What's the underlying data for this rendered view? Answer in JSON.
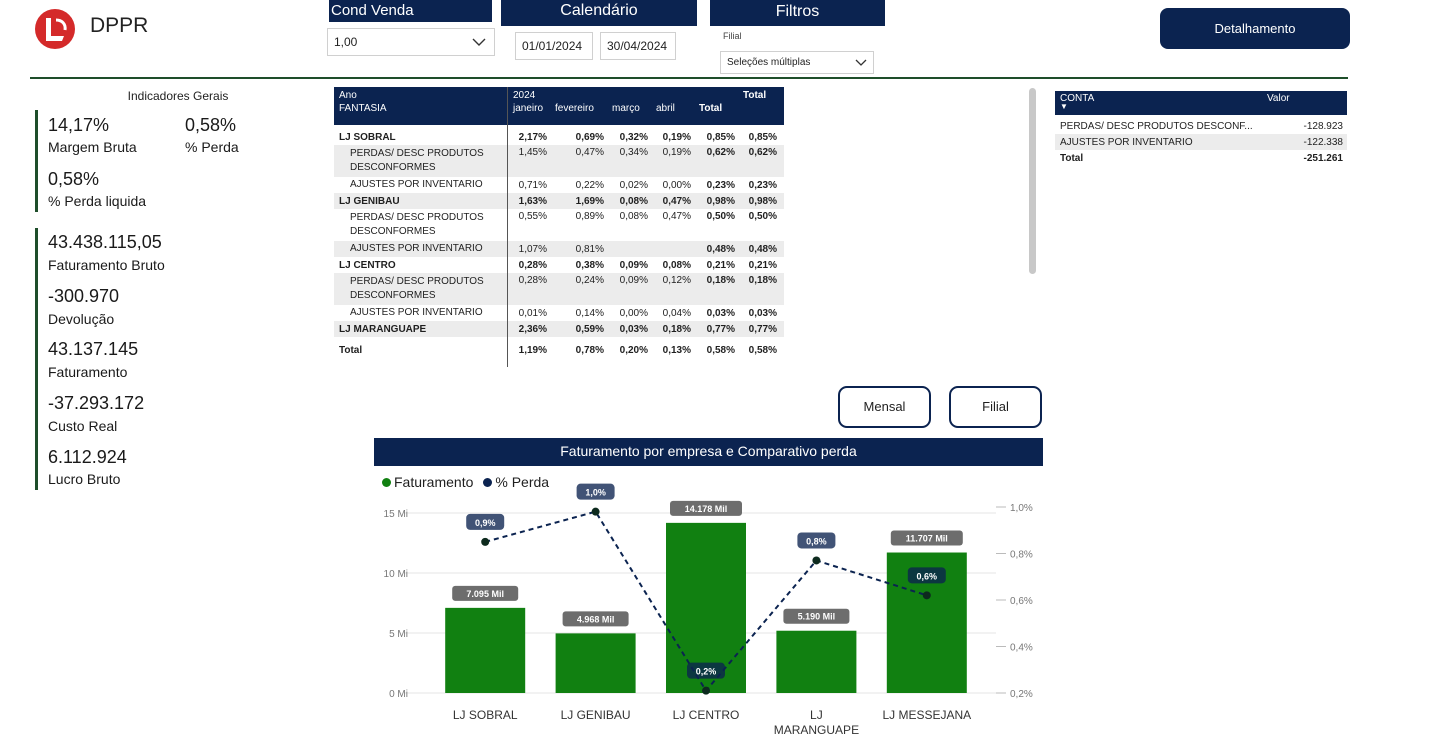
{
  "header": {
    "brand": "DPPR",
    "cond_venda": {
      "title": "Cond Venda",
      "value": "1,00"
    },
    "calendario": {
      "title": "Calendário",
      "start": "01/01/2024",
      "end": "30/04/2024"
    },
    "filtros": {
      "title": "Filtros",
      "filial_label": "Filial",
      "filial_value": "Seleções múltiplas"
    },
    "detalhamento_label": "Detalhamento"
  },
  "indicators": {
    "title": "Indicadores Gerais",
    "margem_bruta": {
      "value": "14,17%",
      "label": "Margem Bruta"
    },
    "perda": {
      "value": "0,58%",
      "label": "% Perda"
    },
    "perda_liquida": {
      "value": "0,58%",
      "label": "% Perda liquida"
    },
    "fat_bruto": {
      "value": "43.438.115,05",
      "label": "Faturamento Bruto"
    },
    "devolucao": {
      "value": "-300.970",
      "label": "Devolução"
    },
    "faturamento": {
      "value": "43.137.145",
      "label": "Faturamento"
    },
    "custo_real": {
      "value": "-37.293.172",
      "label": "Custo Real"
    },
    "lucro_bruto": {
      "value": "6.112.924",
      "label": "Lucro Bruto"
    }
  },
  "matrix": {
    "h_ano": "Ano",
    "h_year": "2024",
    "h_total": "Total",
    "h_fantasia": "FANTASIA",
    "months": [
      "janeiro",
      "fevereiro",
      "março",
      "abril"
    ],
    "rows": [
      {
        "label": "LJ SOBRAL",
        "vals": [
          "2,17%",
          "0,69%",
          "0,32%",
          "0,19%",
          "0,85%",
          "0,85%"
        ]
      },
      {
        "label": "PERDAS/ DESC PRODUTOS DESCONFORMES",
        "vals": [
          "1,45%",
          "0,47%",
          "0,34%",
          "0,19%",
          "0,62%",
          "0,62%"
        ]
      },
      {
        "label": "AJUSTES POR INVENTARIO",
        "vals": [
          "0,71%",
          "0,22%",
          "0,02%",
          "0,00%",
          "0,23%",
          "0,23%"
        ]
      },
      {
        "label": "LJ GENIBAU",
        "vals": [
          "1,63%",
          "1,69%",
          "0,08%",
          "0,47%",
          "0,98%",
          "0,98%"
        ]
      },
      {
        "label": "PERDAS/ DESC PRODUTOS DESCONFORMES",
        "vals": [
          "0,55%",
          "0,89%",
          "0,08%",
          "0,47%",
          "0,50%",
          "0,50%"
        ]
      },
      {
        "label": "AJUSTES POR INVENTARIO",
        "vals": [
          "1,07%",
          "0,81%",
          "",
          "",
          "0,48%",
          "0,48%"
        ]
      },
      {
        "label": "LJ CENTRO",
        "vals": [
          "0,28%",
          "0,38%",
          "0,09%",
          "0,08%",
          "0,21%",
          "0,21%"
        ]
      },
      {
        "label": "PERDAS/ DESC PRODUTOS DESCONFORMES",
        "vals": [
          "0,28%",
          "0,24%",
          "0,09%",
          "0,12%",
          "0,18%",
          "0,18%"
        ]
      },
      {
        "label": "AJUSTES POR INVENTARIO",
        "vals": [
          "0,01%",
          "0,14%",
          "0,00%",
          "0,04%",
          "0,03%",
          "0,03%"
        ]
      },
      {
        "label": "LJ MARANGUAPE",
        "vals": [
          "2,36%",
          "0,59%",
          "0,03%",
          "0,18%",
          "0,77%",
          "0,77%"
        ]
      },
      {
        "label": "Total",
        "vals": [
          "1,19%",
          "0,78%",
          "0,20%",
          "0,13%",
          "0,58%",
          "0,58%"
        ]
      }
    ]
  },
  "conta": {
    "h_conta": "CONTA",
    "h_valor": "Valor",
    "rows": [
      {
        "label": "PERDAS/ DESC PRODUTOS DESCONF...",
        "value": "-128.923"
      },
      {
        "label": "AJUSTES POR INVENTARIO",
        "value": "-122.338"
      },
      {
        "label": "Total",
        "value": "-251.261"
      }
    ]
  },
  "buttons": {
    "mensal": "Mensal",
    "filial": "Filial"
  },
  "chart_data": {
    "type": "bar",
    "title": "Faturamento por empresa e Comparativo perda",
    "categories": [
      "LJ SOBRAL",
      "LJ GENIBAU",
      "LJ CENTRO",
      "LJ MARANGUAPE",
      "LJ MESSEJANA"
    ],
    "category_lines": [
      [
        "LJ SOBRAL"
      ],
      [
        "LJ GENIBAU"
      ],
      [
        "LJ CENTRO"
      ],
      [
        "LJ",
        "MARANGUAPE"
      ],
      [
        "LJ MESSEJANA"
      ]
    ],
    "series": [
      {
        "name": "Faturamento",
        "type": "bar",
        "color": "#118011",
        "values": [
          7.095,
          4.968,
          14.178,
          5.19,
          11.707
        ],
        "labels": [
          "7.095 Mil",
          "4.968 Mil",
          "14.178 Mil",
          "5.190 Mil",
          "11.707 Mil"
        ]
      },
      {
        "name": "% Perda",
        "type": "line",
        "color": "#0b2350",
        "values": [
          0.85,
          0.98,
          0.21,
          0.77,
          0.62
        ],
        "labels": [
          "0,9%",
          "1,0%",
          "0,2%",
          "0,8%",
          "0,6%"
        ]
      }
    ],
    "y_left": {
      "ticks": [
        0,
        5,
        10,
        15
      ],
      "tick_labels": [
        "0 Mi",
        "5 Mi",
        "10 Mi",
        "15 Mi"
      ],
      "min": 0,
      "max": 16.5
    },
    "y_right": {
      "ticks": [
        0.2,
        0.4,
        0.6,
        0.8,
        1.0
      ],
      "tick_labels": [
        "0,2%",
        "0,4%",
        "0,6%",
        "0,8%",
        "1,0%"
      ],
      "min": 0.2,
      "max": 1.0
    },
    "legend": "top-left",
    "grid": true
  }
}
